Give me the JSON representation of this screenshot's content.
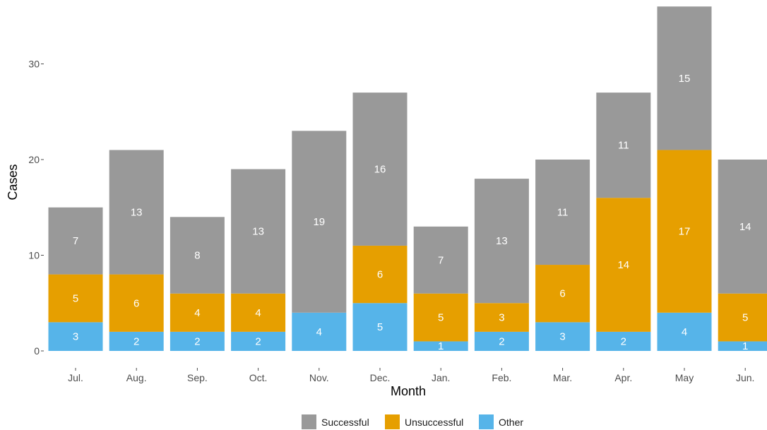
{
  "chart_data": {
    "type": "bar",
    "stacked": true,
    "xlabel": "Month",
    "ylabel": "Cases",
    "ylim": [
      0,
      36
    ],
    "yticks": [
      0,
      10,
      20,
      30
    ],
    "grid": false,
    "legend_position": "bottom",
    "categories": [
      "Jul.",
      "Aug.",
      "Sep.",
      "Oct.",
      "Nov.",
      "Dec.",
      "Jan.",
      "Feb.",
      "Mar.",
      "Apr.",
      "May",
      "Jun."
    ],
    "series": [
      {
        "name": "Other",
        "color": "#56B4E9",
        "values": [
          3,
          2,
          2,
          2,
          4,
          5,
          1,
          2,
          3,
          2,
          4,
          1
        ]
      },
      {
        "name": "Unsuccessful",
        "color": "#E69F00",
        "values": [
          5,
          6,
          4,
          4,
          0,
          6,
          5,
          3,
          6,
          14,
          17,
          5
        ]
      },
      {
        "name": "Successful",
        "color": "#999999",
        "values": [
          7,
          13,
          8,
          13,
          19,
          16,
          7,
          13,
          11,
          11,
          15,
          14
        ]
      }
    ],
    "legend": [
      "Successful",
      "Unsuccessful",
      "Other"
    ]
  }
}
